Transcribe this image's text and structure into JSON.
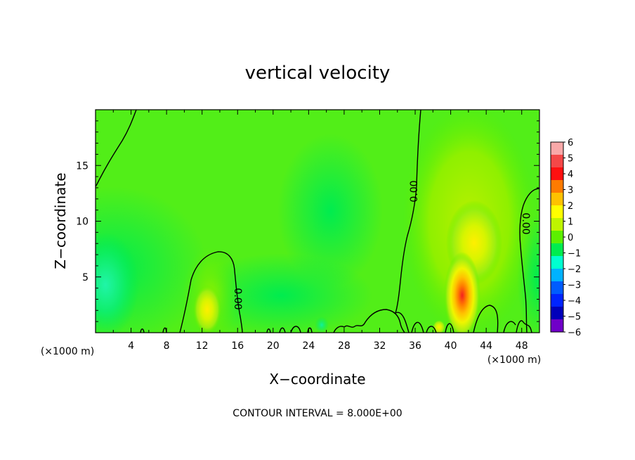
{
  "chart_data": {
    "type": "heatmap",
    "title": "vertical velocity",
    "xlabel": "X−coordinate",
    "ylabel": "Z−coordinate",
    "x_unit_left": "(×1000 m)",
    "x_unit_right": "(×1000 m)",
    "footer": "CONTOUR INTERVAL = 8.000E+00",
    "xlim": [
      0,
      50
    ],
    "ylim": [
      0,
      20
    ],
    "x_ticks": [
      "4",
      "8",
      "12",
      "16",
      "20",
      "24",
      "28",
      "32",
      "36",
      "40",
      "44",
      "48"
    ],
    "y_ticks": [
      "5",
      "10",
      "15"
    ],
    "colorbar": {
      "vmin": -6,
      "vmax": 6,
      "labels": [
        "6",
        "5",
        "4",
        "3",
        "2",
        "1",
        "0",
        "−1",
        "−2",
        "−3",
        "−4",
        "−5",
        "−6"
      ],
      "colors": [
        "#f9a9a9",
        "#f44848",
        "#ff1010",
        "#ff7b00",
        "#ffc200",
        "#ffff00",
        "#bff500",
        "#5cf000",
        "#00ec4f",
        "#00ffd0",
        "#00b2ff",
        "#005cff",
        "#0024ff",
        "#0000ba",
        "#7000c8"
      ]
    },
    "contour_labels": [
      "0.00",
      "0.00",
      "0.00"
    ],
    "features": [
      {
        "x": 41.2,
        "z": 3.0,
        "w": 5.0
      },
      {
        "x": 12.6,
        "z": 2.0,
        "w": 2.0
      },
      {
        "x": 42.5,
        "z": 8.0,
        "w": 1.5
      },
      {
        "x": 1.0,
        "z": 4.0,
        "w": -1.8
      },
      {
        "x": 25.5,
        "z": 1.0,
        "w": -1.5
      }
    ]
  }
}
